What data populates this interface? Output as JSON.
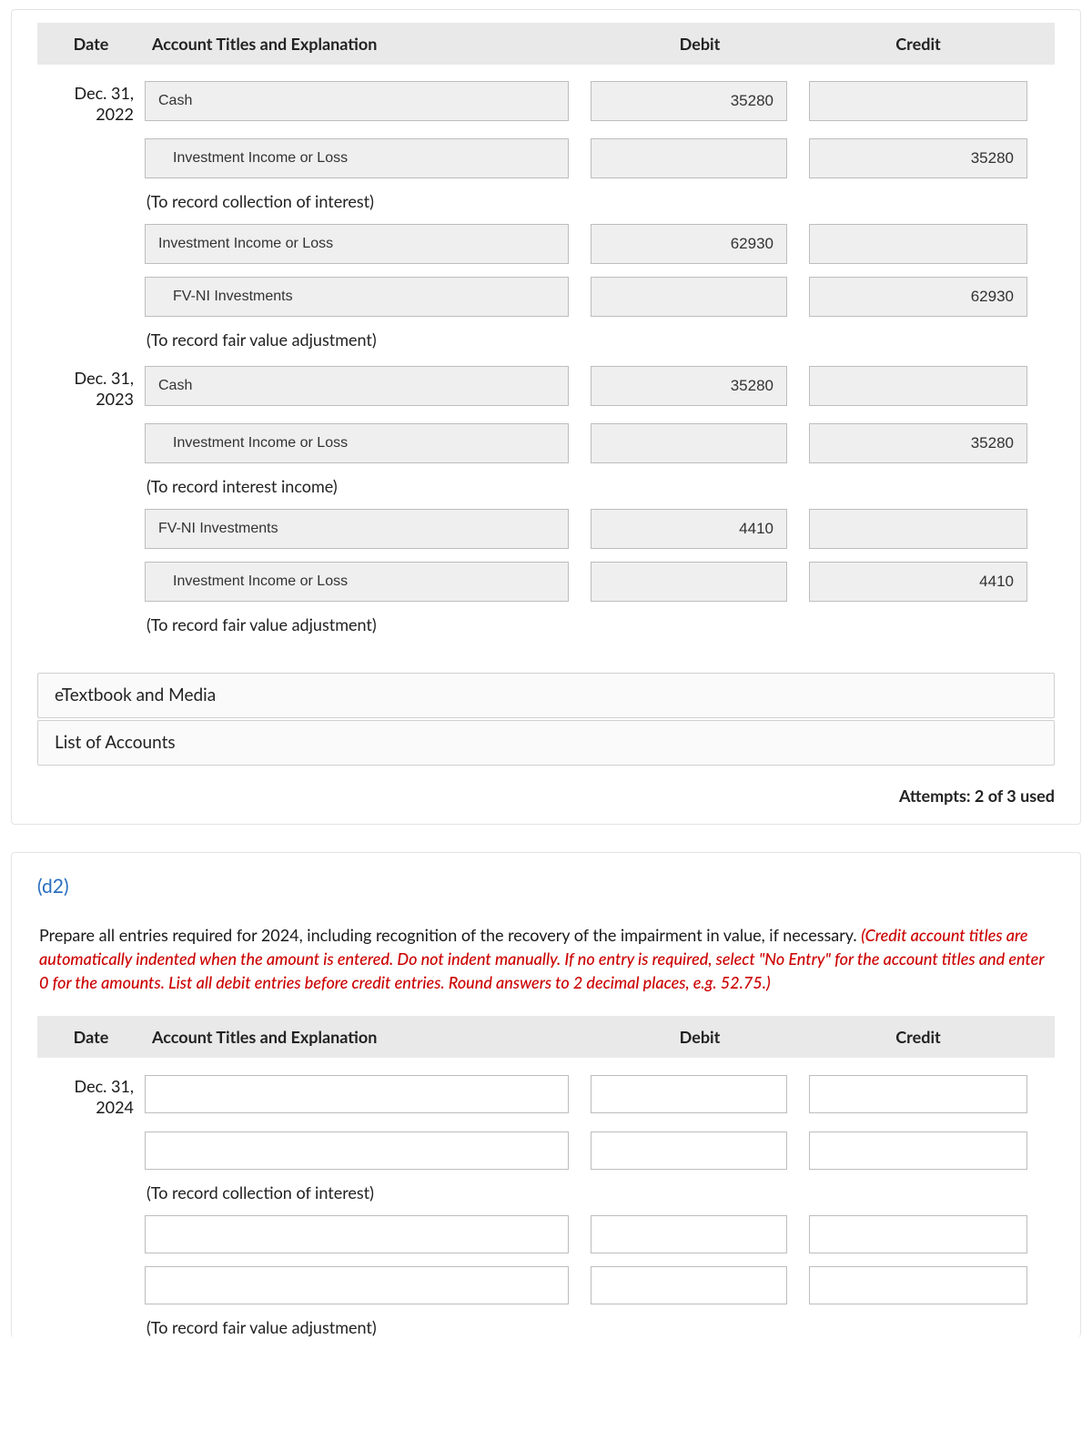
{
  "section1": {
    "headers": {
      "date": "Date",
      "acct": "Account Titles and Explanation",
      "debit": "Debit",
      "credit": "Credit"
    },
    "groups": [
      {
        "date": "Dec. 31, 2022",
        "lines": [
          {
            "indent": false,
            "acct": "Cash",
            "debit": "35280",
            "credit": ""
          },
          {
            "indent": true,
            "acct": "Investment Income or Loss",
            "debit": "",
            "credit": "35280"
          }
        ],
        "desc": "(To record collection of interest)"
      },
      {
        "date": "",
        "lines": [
          {
            "indent": false,
            "acct": "Investment Income or Loss",
            "debit": "62930",
            "credit": ""
          },
          {
            "indent": true,
            "acct": "FV-NI Investments",
            "debit": "",
            "credit": "62930"
          }
        ],
        "desc": "(To record fair value adjustment)"
      },
      {
        "date": "Dec. 31, 2023",
        "lines": [
          {
            "indent": false,
            "acct": "Cash",
            "debit": "35280",
            "credit": ""
          },
          {
            "indent": true,
            "acct": "Investment Income or Loss",
            "debit": "",
            "credit": "35280"
          }
        ],
        "desc": "(To record interest income)"
      },
      {
        "date": "",
        "lines": [
          {
            "indent": false,
            "acct": "FV-NI Investments",
            "debit": "4410",
            "credit": ""
          },
          {
            "indent": true,
            "acct": "Investment Income or Loss",
            "debit": "",
            "credit": "4410"
          }
        ],
        "desc": "(To record fair value adjustment)"
      }
    ],
    "buttons": {
      "etext": "eTextbook and Media",
      "accounts": "List of Accounts"
    },
    "attempts": "Attempts: 2 of 3 used"
  },
  "section2": {
    "part": "(d2)",
    "instr_plain": "Prepare all entries required for 2024, including recognition of the recovery of the impairment in value, if necessary. ",
    "instr_red": "(Credit account titles are automatically indented when the amount is entered. Do not indent manually. If no entry is required, select \"No Entry\" for the account titles and enter 0 for the amounts. List all debit entries before credit entries. Round answers to 2 decimal places, e.g. 52.75.)",
    "headers": {
      "date": "Date",
      "acct": "Account Titles and Explanation",
      "debit": "Debit",
      "credit": "Credit"
    },
    "groups": [
      {
        "date": "Dec. 31, 2024",
        "lines": [
          {
            "acct": "",
            "debit": "",
            "credit": ""
          },
          {
            "acct": "",
            "debit": "",
            "credit": ""
          }
        ],
        "desc": "(To record collection of interest)"
      },
      {
        "date": "",
        "lines": [
          {
            "acct": "",
            "debit": "",
            "credit": ""
          },
          {
            "acct": "",
            "debit": "",
            "credit": ""
          }
        ],
        "desc": "(To record fair value adjustment)"
      }
    ]
  }
}
